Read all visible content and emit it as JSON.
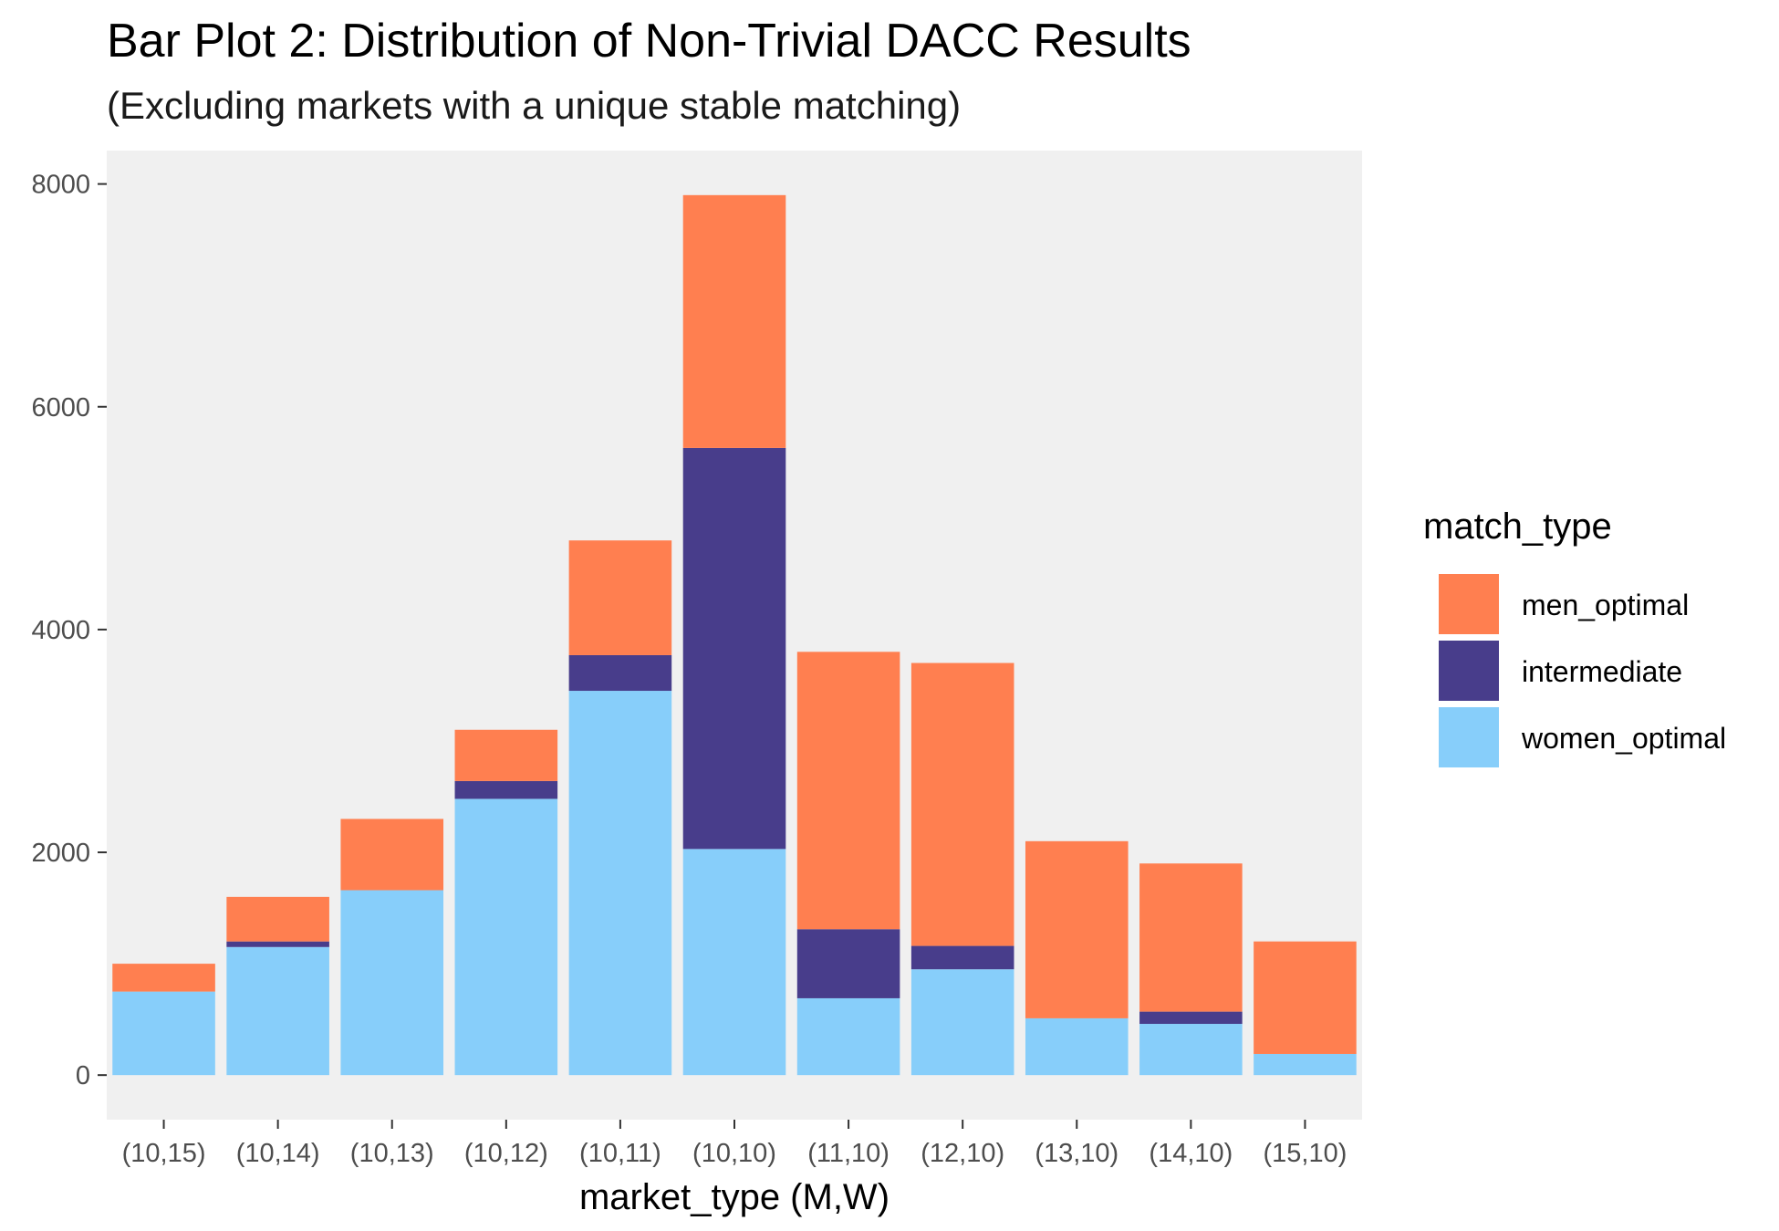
{
  "chart_data": {
    "type": "bar",
    "stacked": true,
    "title": "Bar Plot 2: Distribution of Non-Trivial DACC Results",
    "subtitle": "(Excluding markets with a unique stable matching)",
    "xlabel": "market_type (M,W)",
    "ylabel": "",
    "ylim": [
      -400,
      8300
    ],
    "yticks": [
      0,
      2000,
      4000,
      6000,
      8000
    ],
    "categories": [
      "(10,15)",
      "(10,14)",
      "(10,13)",
      "(10,12)",
      "(10,11)",
      "(10,10)",
      "(11,10)",
      "(12,10)",
      "(13,10)",
      "(14,10)",
      "(15,10)"
    ],
    "series": [
      {
        "name": "women_optimal",
        "color": "#87CEFA",
        "values": [
          750,
          1150,
          1660,
          2480,
          3450,
          2030,
          690,
          950,
          510,
          460,
          190
        ]
      },
      {
        "name": "intermediate",
        "color": "#483D8B",
        "values": [
          0,
          50,
          0,
          160,
          320,
          3600,
          620,
          210,
          0,
          110,
          0
        ]
      },
      {
        "name": "men_optimal",
        "color": "#FF7F50",
        "values": [
          250,
          400,
          640,
          460,
          1030,
          2270,
          2490,
          2540,
          1590,
          1330,
          1010
        ]
      }
    ],
    "legend": {
      "title": "match_type",
      "position": "right",
      "order": [
        "men_optimal",
        "intermediate",
        "women_optimal"
      ]
    },
    "grid": false,
    "panel_background": "#F0F0F0"
  }
}
